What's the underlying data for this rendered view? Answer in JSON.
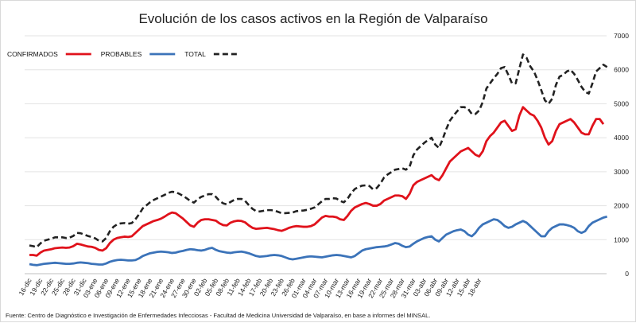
{
  "chart_data": {
    "type": "line",
    "title": "Evolución de los casos activos en la Región de Valparaíso",
    "source": "Fuente: Centro de Diagnóstico e Investigación de Enfermedades Infecciosas - Facultad de Medicina Universidad de Valparaíso, en base a informes del MINSAL.",
    "legend_position": "top-left",
    "ylim": [
      0,
      7000
    ],
    "y_ticks": [
      0,
      1000,
      2000,
      3000,
      4000,
      5000,
      6000,
      7000
    ],
    "y_axis_side": "right",
    "x_tick_labels": [
      "16-dic",
      "19-dic",
      "22-dic",
      "25-dic",
      "28-dic",
      "31-dic",
      "03-ene",
      "06-ene",
      "09-ene",
      "12-ene",
      "15-ene",
      "18-ene",
      "21-ene",
      "24-ene",
      "27-ene",
      "30-ene",
      "02-feb",
      "05-feb",
      "08-feb",
      "11-feb",
      "14-feb",
      "17-feb",
      "20-feb",
      "23-feb",
      "26-feb",
      "01-mar",
      "04-mar",
      "07-mar",
      "10-mar",
      "13-mar",
      "16-mar",
      "19-mar",
      "22-mar",
      "25-mar",
      "28-mar",
      "31-mar",
      "03-abr",
      "06-abr",
      "09-abr",
      "12-abr",
      "15-abr",
      "18-abr"
    ],
    "x_points_per_tick": 3,
    "series": [
      {
        "name": "CONFIRMADOS",
        "color": "#e0121b",
        "style": "solid",
        "values": [
          550,
          550,
          530,
          620,
          680,
          700,
          720,
          750,
          760,
          770,
          760,
          770,
          810,
          880,
          860,
          830,
          800,
          790,
          760,
          700,
          680,
          750,
          900,
          1000,
          1050,
          1070,
          1090,
          1080,
          1100,
          1200,
          1300,
          1400,
          1450,
          1500,
          1550,
          1580,
          1620,
          1680,
          1750,
          1800,
          1780,
          1700,
          1620,
          1520,
          1420,
          1380,
          1500,
          1580,
          1600,
          1600,
          1580,
          1560,
          1480,
          1430,
          1420,
          1500,
          1540,
          1560,
          1550,
          1510,
          1420,
          1350,
          1320,
          1330,
          1340,
          1350,
          1330,
          1310,
          1280,
          1260,
          1300,
          1350,
          1380,
          1400,
          1390,
          1380,
          1380,
          1400,
          1450,
          1550,
          1650,
          1700,
          1680,
          1680,
          1660,
          1600,
          1580,
          1700,
          1850,
          1950,
          2000,
          2050,
          2080,
          2050,
          2000,
          2000,
          2050,
          2150,
          2200,
          2250,
          2300,
          2300,
          2280,
          2200,
          2350,
          2600,
          2700,
          2750,
          2800,
          2850,
          2900,
          2800,
          2750,
          2900,
          3100,
          3300,
          3400,
          3500,
          3600,
          3650,
          3700,
          3600,
          3500,
          3450,
          3600,
          3900,
          4050,
          4150,
          4300,
          4450,
          4500,
          4350,
          4200,
          4250,
          4650,
          4900,
          4800,
          4700,
          4650,
          4500,
          4300,
          4000,
          3800,
          3900,
          4200,
          4400,
          4450,
          4500,
          4550,
          4450,
          4300,
          4150,
          4100,
          4100,
          4350,
          4550,
          4550,
          4400
        ]
      },
      {
        "name": "PROBABLES",
        "color": "#3b73b9",
        "style": "solid",
        "values": [
          280,
          260,
          250,
          270,
          290,
          300,
          310,
          320,
          310,
          300,
          290,
          290,
          300,
          320,
          330,
          320,
          310,
          290,
          280,
          270,
          270,
          300,
          350,
          380,
          400,
          410,
          400,
          390,
          390,
          400,
          450,
          520,
          560,
          600,
          620,
          640,
          650,
          640,
          630,
          610,
          620,
          650,
          670,
          700,
          720,
          710,
          690,
          680,
          700,
          740,
          760,
          700,
          660,
          640,
          620,
          610,
          630,
          640,
          650,
          630,
          600,
          560,
          520,
          500,
          510,
          520,
          540,
          550,
          540,
          520,
          480,
          440,
          420,
          440,
          460,
          480,
          500,
          510,
          500,
          490,
          480,
          500,
          520,
          540,
          550,
          540,
          520,
          500,
          480,
          520,
          600,
          680,
          720,
          740,
          760,
          780,
          790,
          800,
          820,
          860,
          900,
          880,
          820,
          780,
          800,
          880,
          950,
          1000,
          1050,
          1080,
          1100,
          1000,
          950,
          1050,
          1150,
          1200,
          1250,
          1280,
          1300,
          1250,
          1150,
          1100,
          1200,
          1350,
          1450,
          1500,
          1550,
          1600,
          1580,
          1500,
          1400,
          1350,
          1380,
          1450,
          1500,
          1550,
          1500,
          1400,
          1300,
          1200,
          1100,
          1100,
          1250,
          1350,
          1400,
          1450,
          1450,
          1430,
          1400,
          1350,
          1250,
          1200,
          1250,
          1400,
          1500,
          1550,
          1600,
          1650,
          1680
        ]
      },
      {
        "name": "TOTAL",
        "color": "#222222",
        "style": "dashed",
        "values": [
          830,
          810,
          780,
          890,
          970,
          1000,
          1030,
          1070,
          1070,
          1070,
          1050,
          1060,
          1110,
          1200,
          1190,
          1150,
          1110,
          1080,
          1040,
          970,
          950,
          1050,
          1250,
          1380,
          1450,
          1480,
          1490,
          1470,
          1490,
          1600,
          1750,
          1920,
          2010,
          2100,
          2170,
          2220,
          2270,
          2320,
          2380,
          2410,
          2400,
          2350,
          2290,
          2220,
          2140,
          2090,
          2190,
          2260,
          2300,
          2340,
          2340,
          2260,
          2140,
          2070,
          2040,
          2110,
          2170,
          2200,
          2200,
          2140,
          2020,
          1910,
          1840,
          1830,
          1850,
          1870,
          1870,
          1860,
          1820,
          1780,
          1780,
          1790,
          1800,
          1840,
          1850,
          1860,
          1880,
          1910,
          1950,
          2040,
          2130,
          2200,
          2200,
          2220,
          2210,
          2140,
          2100,
          2200,
          2370,
          2490,
          2550,
          2590,
          2600,
          2580,
          2480,
          2520,
          2650,
          2830,
          2920,
          2990,
          3060,
          3080,
          3100,
          3060,
          3150,
          3480,
          3650,
          3750,
          3850,
          3930,
          4000,
          3800,
          3700,
          3950,
          4250,
          4500,
          4650,
          4780,
          4900,
          4900,
          4850,
          4700,
          4700,
          4800,
          5050,
          5450,
          5600,
          5750,
          5880,
          6050,
          6080,
          5850,
          5600,
          5600,
          6030,
          6450,
          6350,
          6100,
          5950,
          5700,
          5400,
          5100,
          5000,
          5150,
          5550,
          5800,
          5850,
          5950,
          6000,
          5880,
          5700,
          5500,
          5350,
          5300,
          5600,
          5950,
          6050,
          6150,
          6080
        ]
      }
    ]
  }
}
